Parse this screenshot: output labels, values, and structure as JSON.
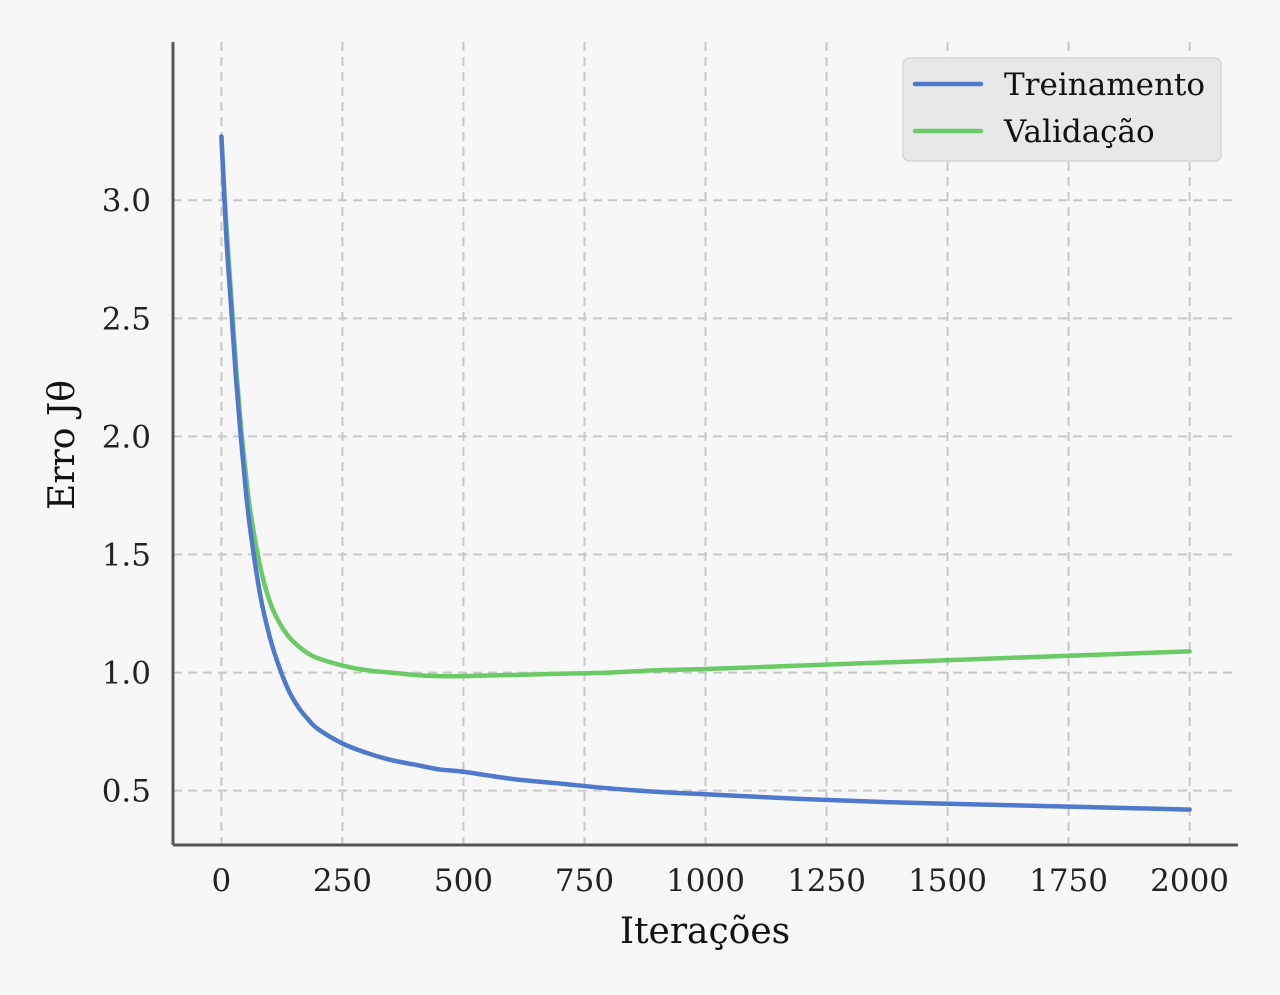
{
  "chart_data": {
    "type": "line",
    "title": "",
    "xlabel": "Iterações",
    "ylabel": "Erro Jθ",
    "xlim": [
      -100,
      2100
    ],
    "ylim": [
      0.27,
      3.67
    ],
    "xticks": [
      0,
      250,
      500,
      750,
      1000,
      1250,
      1500,
      1750,
      2000
    ],
    "xtick_labels": [
      "0",
      "250",
      "500",
      "750",
      "1000",
      "1250",
      "1500",
      "1750",
      "2000"
    ],
    "yticks": [
      0.5,
      1.0,
      1.5,
      2.0,
      2.5,
      3.0
    ],
    "ytick_labels": [
      "0.5",
      "1.0",
      "1.5",
      "2.0",
      "2.5",
      "3.0"
    ],
    "grid": true,
    "legend_position": "top-right",
    "series": [
      {
        "name": "Treinamento",
        "color": "#4e79cc",
        "x": [
          0,
          10,
          20,
          30,
          40,
          50,
          60,
          80,
          100,
          120,
          140,
          160,
          180,
          200,
          250,
          300,
          350,
          400,
          450,
          500,
          600,
          700,
          800,
          900,
          1000,
          1200,
          1400,
          1600,
          1800,
          2000
        ],
        "y": [
          3.27,
          2.85,
          2.55,
          2.25,
          2.0,
          1.78,
          1.6,
          1.33,
          1.15,
          1.02,
          0.92,
          0.85,
          0.8,
          0.76,
          0.7,
          0.66,
          0.63,
          0.61,
          0.59,
          0.58,
          0.55,
          0.53,
          0.51,
          0.495,
          0.485,
          0.465,
          0.45,
          0.44,
          0.43,
          0.42
        ]
      },
      {
        "name": "Validação",
        "color": "#6acb65",
        "x": [
          0,
          10,
          20,
          30,
          40,
          50,
          60,
          80,
          100,
          120,
          140,
          160,
          180,
          200,
          250,
          300,
          350,
          400,
          450,
          500,
          600,
          700,
          800,
          900,
          1000,
          1200,
          1400,
          1600,
          1800,
          2000
        ],
        "y": [
          3.27,
          2.9,
          2.6,
          2.3,
          2.05,
          1.85,
          1.68,
          1.45,
          1.3,
          1.21,
          1.15,
          1.11,
          1.08,
          1.06,
          1.03,
          1.01,
          1.0,
          0.99,
          0.985,
          0.985,
          0.99,
          0.995,
          1.0,
          1.01,
          1.015,
          1.03,
          1.045,
          1.06,
          1.075,
          1.09
        ]
      }
    ]
  }
}
